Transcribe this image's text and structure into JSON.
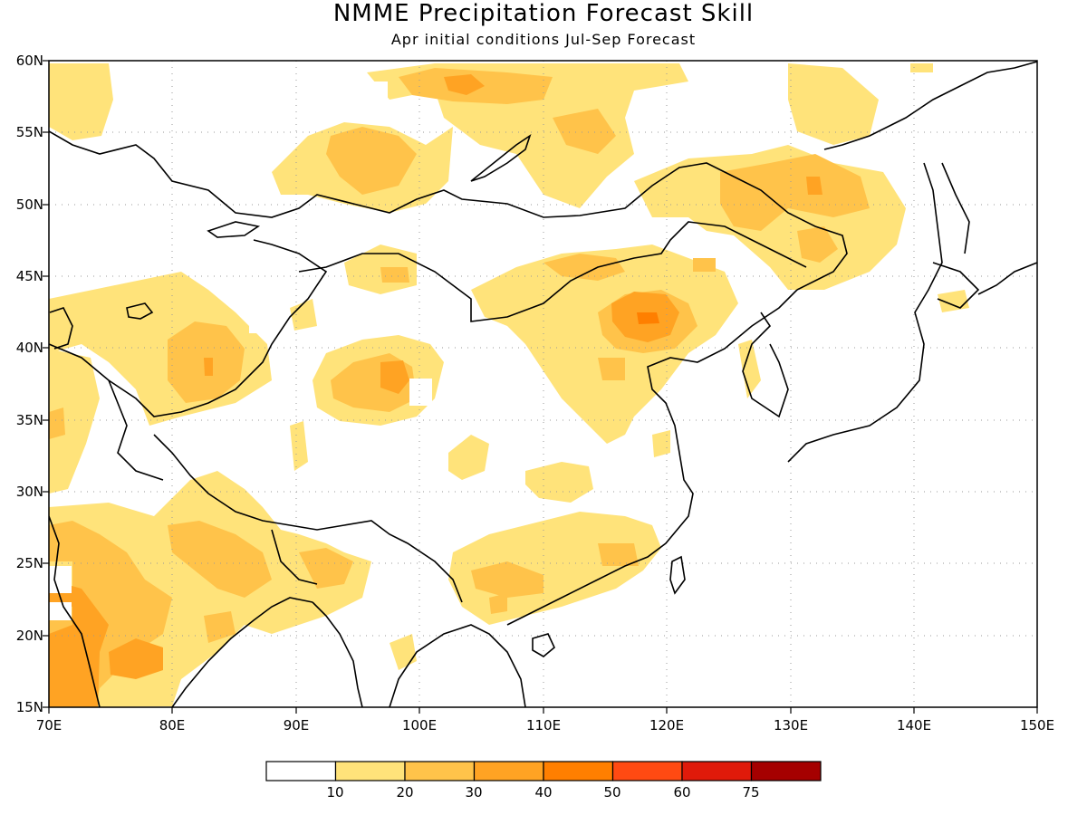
{
  "title": "NMME Precipitation Forecast Skill",
  "subtitle": "Apr initial conditions  Jul-Sep Forecast",
  "lat_labels": [
    "60N",
    "55N",
    "50N",
    "45N",
    "40N",
    "35N",
    "30N",
    "25N",
    "20N",
    "15N"
  ],
  "lon_labels": [
    "70E",
    "80E",
    "90E",
    "100E",
    "110E",
    "120E",
    "130E",
    "140E",
    "150E"
  ],
  "colorbar": {
    "labels": [
      "10",
      "20",
      "30",
      "40",
      "50",
      "60",
      "75"
    ],
    "colors": [
      "#ffffff",
      "#ffe37a",
      "#ffc34a",
      "#ffa323",
      "#ff7f00",
      "#ff4a12",
      "#e01a0a",
      "#a50000"
    ]
  },
  "map": {
    "lon_range": [
      70,
      150
    ],
    "lat_range": [
      15,
      60
    ],
    "variable": "precipitation forecast skill"
  }
}
